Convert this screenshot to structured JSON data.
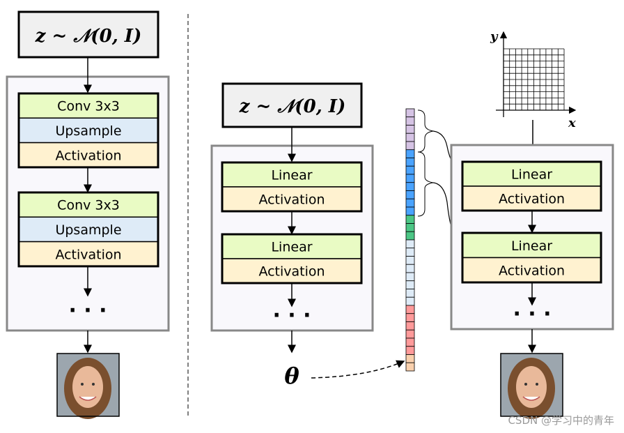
{
  "left": {
    "noise": "z ~ 𝒩(0, I)",
    "blocks": [
      [
        "Conv 3x3",
        "Upsample",
        "Activation"
      ],
      [
        "Conv 3x3",
        "Upsample",
        "Activation"
      ]
    ],
    "dots": "· · ·"
  },
  "middle": {
    "noise": "z ~ 𝒩(0, I)",
    "blocks": [
      [
        "Linear",
        "Activation"
      ],
      [
        "Linear",
        "Activation"
      ]
    ],
    "dots": "· · ·",
    "theta": "θ"
  },
  "right": {
    "blocks": [
      [
        "Linear",
        "Activation"
      ],
      [
        "Linear",
        "Activation"
      ]
    ],
    "dots": "· · ·",
    "axis_x": "x",
    "axis_y": "y"
  },
  "param_vector": {
    "segments": [
      {
        "color": "#d5c3e4",
        "count": 5
      },
      {
        "color": "#4aa3ff",
        "count": 8
      },
      {
        "color": "#4cc685",
        "count": 3
      },
      {
        "color": "#deebf7",
        "count": 8
      },
      {
        "color": "#ff9a9a",
        "count": 6
      },
      {
        "color": "#f9d0ad",
        "count": 2
      }
    ]
  },
  "colors": {
    "conv": "#e9fbc4",
    "linear": "#e9fbc4",
    "upsample": "#deebf7",
    "activation": "#fff2d0",
    "panel": "#f9f8fc",
    "panel_border": "#888888"
  },
  "watermark": "CSDN @学习中的青年"
}
